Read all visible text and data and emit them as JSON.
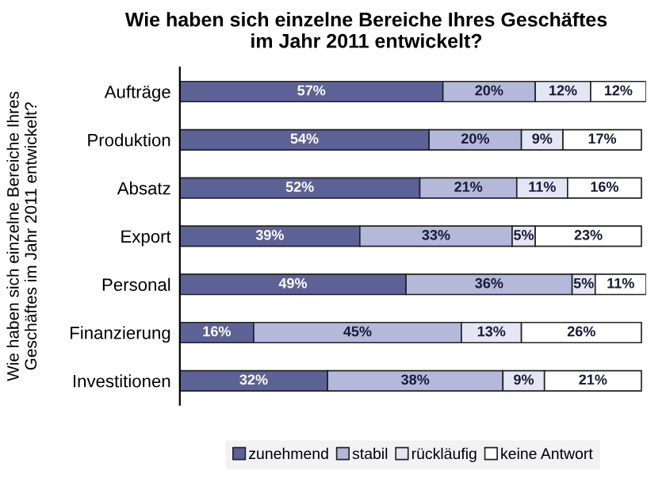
{
  "chart_data": {
    "type": "bar",
    "orientation": "horizontal",
    "stacked": true,
    "title": "Wie haben sich einzelne Bereiche Ihres Geschäftes\nim Jahr 2011 entwickelt?",
    "ylabel": "Wie haben sich einzelne Bereiche Ihres\nGeschäftes im Jahr 2011 entwickelt?",
    "categories": [
      "Aufträge",
      "Produktion",
      "Absatz",
      "Export",
      "Personal",
      "Finanzierung",
      "Investitionen"
    ],
    "series": [
      {
        "name": "zunehmend",
        "color": "#5d6296",
        "values": [
          57,
          54,
          52,
          39,
          49,
          16,
          32
        ],
        "value_labels": [
          "57%",
          "54%",
          "52%",
          "39%",
          "49%",
          "16%",
          "32%"
        ]
      },
      {
        "name": "stabil",
        "color": "#b4b8da",
        "values": [
          20,
          20,
          21,
          33,
          36,
          45,
          38
        ],
        "value_labels": [
          "20%",
          "20%",
          "21%",
          "33%",
          "36%",
          "45%",
          "38%"
        ]
      },
      {
        "name": "rückläufig",
        "color": "#e4e6f3",
        "values": [
          12,
          9,
          11,
          5,
          5,
          13,
          9
        ],
        "value_labels": [
          "12%",
          "9%",
          "11%",
          "5%",
          "5%",
          "13%",
          "9%"
        ]
      },
      {
        "name": "keine Antwort",
        "color": "#ffffff",
        "values": [
          12,
          17,
          16,
          23,
          11,
          26,
          21
        ],
        "value_labels": [
          "12%",
          "17%",
          "16%",
          "23%",
          "11%",
          "26%",
          "21%"
        ]
      }
    ],
    "legend": "bottom"
  }
}
